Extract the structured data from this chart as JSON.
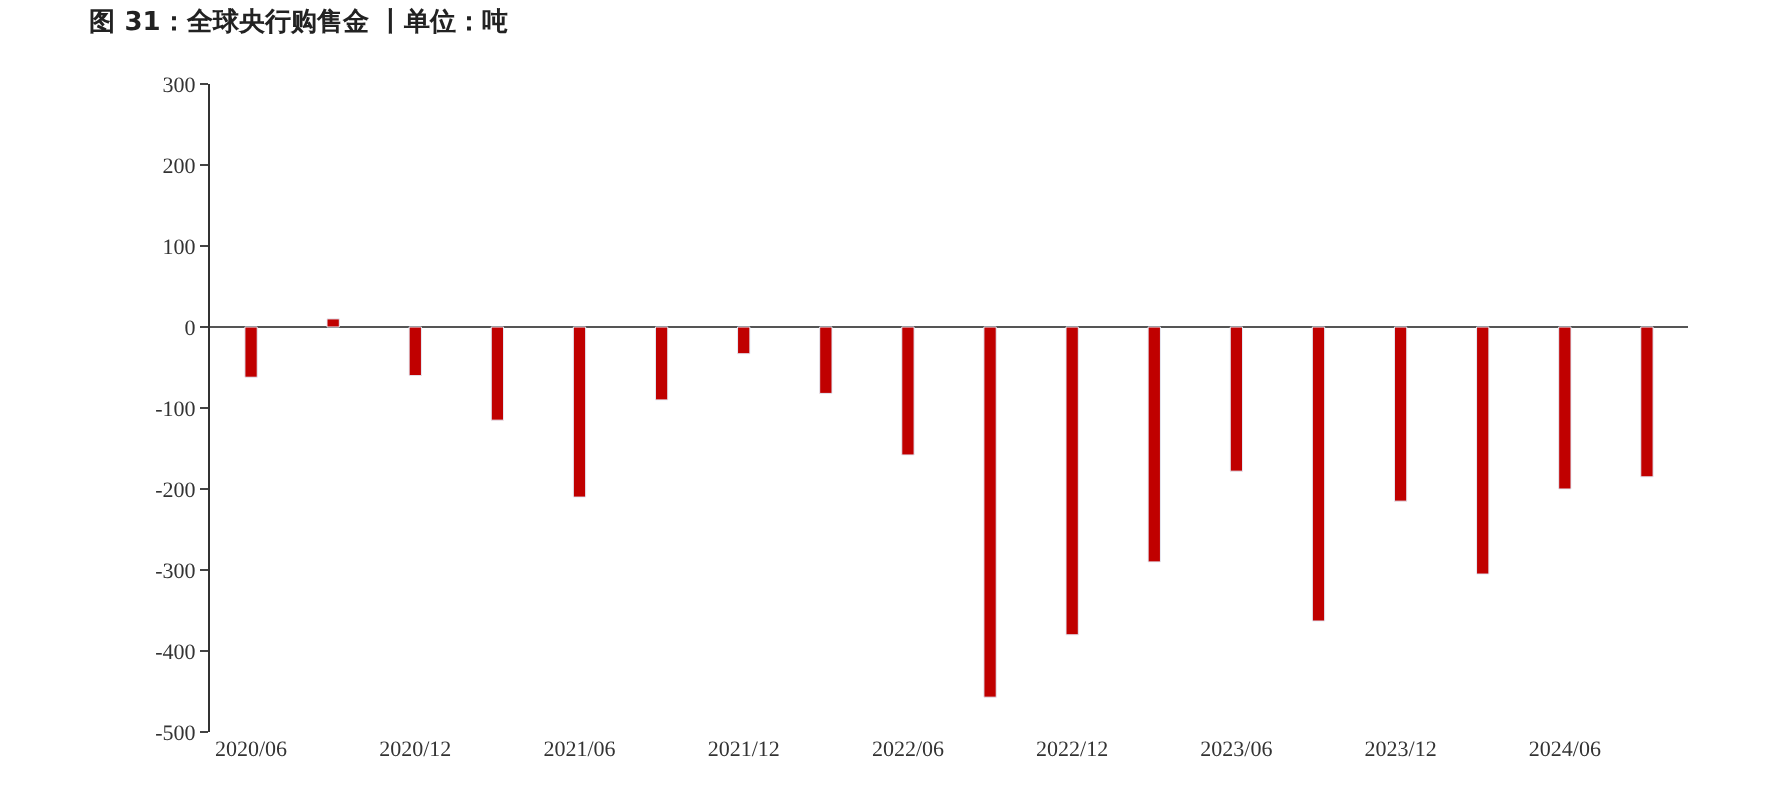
{
  "chart_data": {
    "type": "bar",
    "title": "图 31：全球央行购售金 丨单位：吨",
    "categories": [
      "2020/06",
      null,
      "2020/12",
      null,
      "2021/06",
      null,
      "2021/12",
      null,
      "2022/06",
      null,
      "2022/12",
      null,
      "2023/06",
      null,
      "2023/12",
      null,
      "2024/06",
      null
    ],
    "values": [
      -62,
      10,
      -60,
      -115,
      -210,
      -90,
      -33,
      -82,
      -158,
      -457,
      -380,
      -290,
      -178,
      -363,
      -215,
      -305,
      -200,
      -185
    ],
    "color": "#c00000",
    "ylim": [
      -500,
      300
    ],
    "yticks": [
      -500,
      -400,
      -300,
      -200,
      -100,
      0,
      100,
      200,
      300
    ]
  }
}
